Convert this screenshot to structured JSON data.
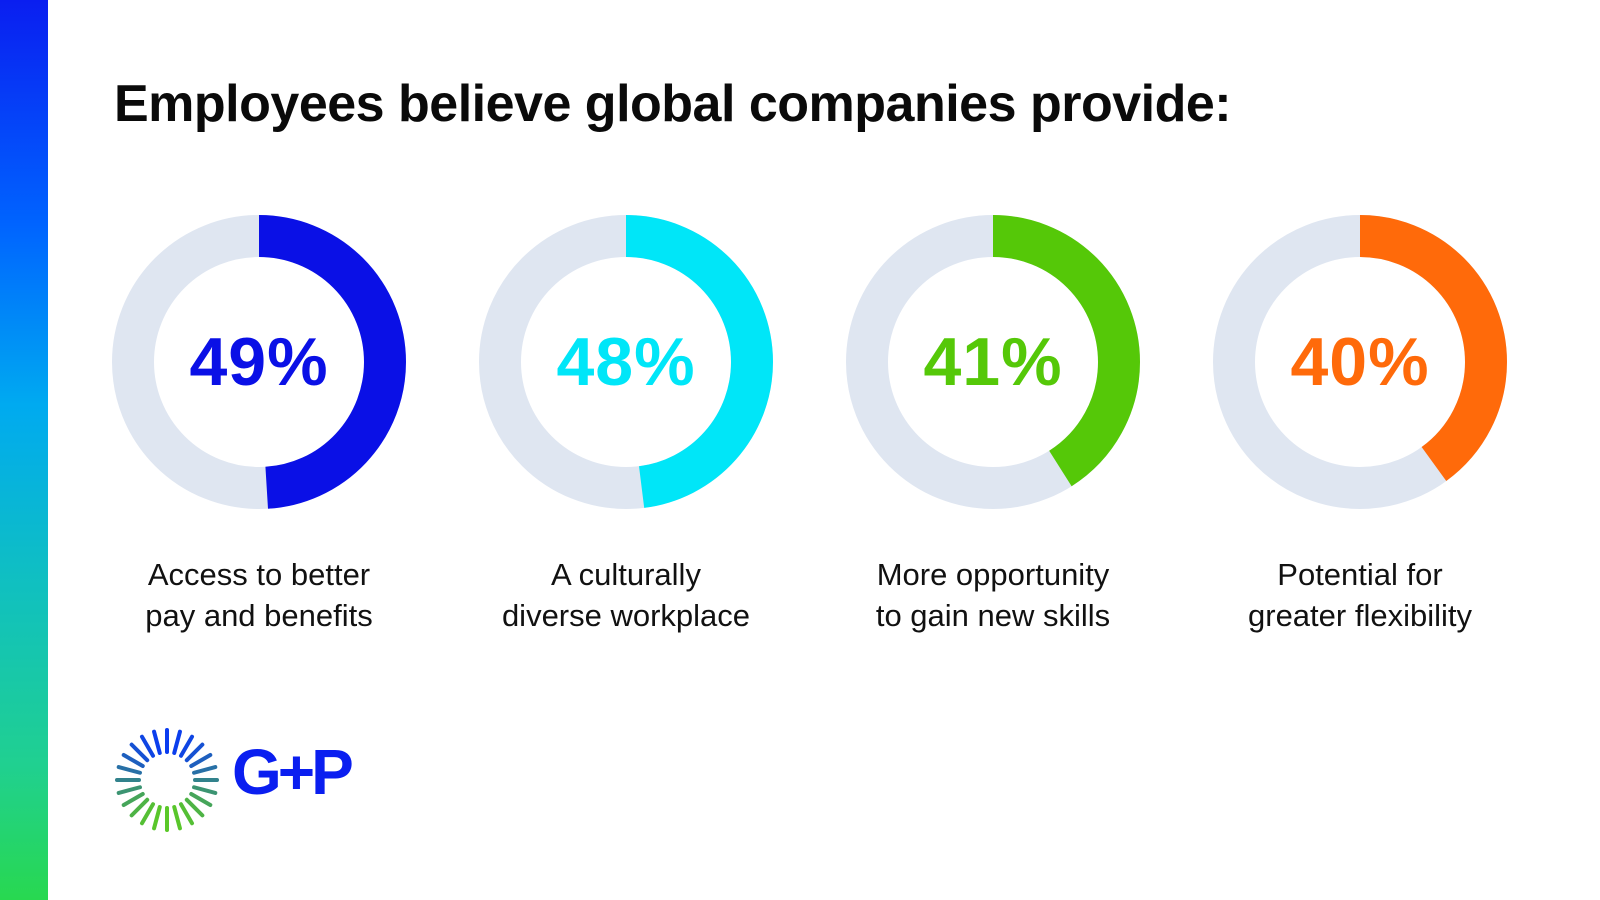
{
  "title": "Employees believe global companies provide:",
  "track_color": "#dfe6f1",
  "items": [
    {
      "value": 49,
      "value_label": "49%",
      "color": "#0a10e6",
      "caption_line1": "Access to better",
      "caption_line2": "pay and benefits"
    },
    {
      "value": 48,
      "value_label": "48%",
      "color": "#00e6f8",
      "caption_line1": "A culturally",
      "caption_line2": "diverse workplace"
    },
    {
      "value": 41,
      "value_label": "41%",
      "color": "#55c808",
      "caption_line1": "More opportunity",
      "caption_line2": "to gain new skills"
    },
    {
      "value": 40,
      "value_label": "40%",
      "color": "#ff6a0a",
      "caption_line1": "Potential for",
      "caption_line2": "greater flexibility"
    }
  ],
  "logo": {
    "text": "G+P",
    "icon": "sunburst-icon",
    "color": "#0a1ef0"
  },
  "chart_data": {
    "type": "pie",
    "subtype": "donut",
    "title": "Employees believe global companies provide:",
    "categories": [
      "Access to better pay and benefits",
      "A culturally diverse workplace",
      "More opportunity to gain new skills",
      "Potential for greater flexibility"
    ],
    "values": [
      49,
      48,
      41,
      40
    ],
    "unit": "%",
    "colors": [
      "#0a10e6",
      "#00e6f8",
      "#55c808",
      "#ff6a0a"
    ],
    "legend": "none",
    "grid": false
  }
}
